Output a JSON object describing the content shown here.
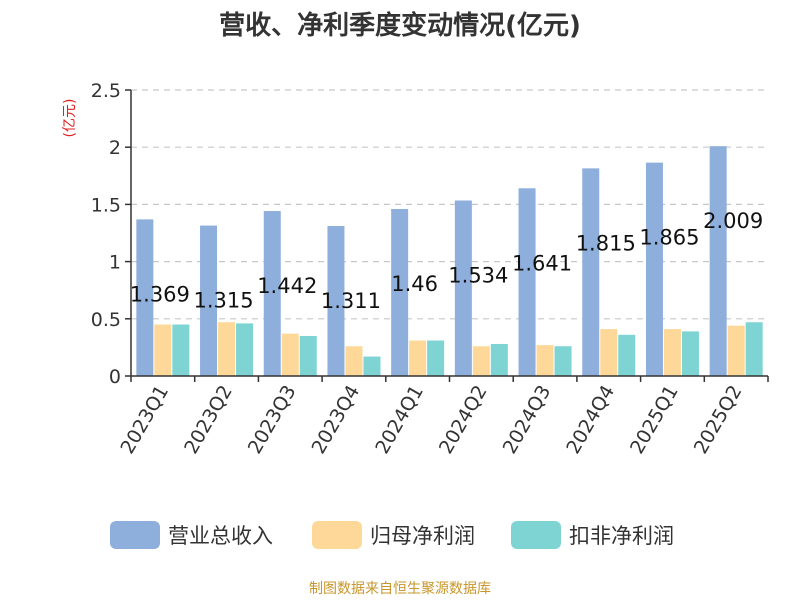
{
  "chart_data": {
    "type": "bar",
    "title": "营收、净利季度变动情况(亿元)",
    "ylabel": "(亿元)",
    "ylim": [
      0,
      2.5
    ],
    "yticks": [
      "0",
      "0.5",
      "1",
      "1.5",
      "2",
      "2.5"
    ],
    "grid": true,
    "legend_position": "bottom",
    "categories": [
      "2023Q1",
      "2023Q2",
      "2023Q3",
      "2023Q4",
      "2024Q1",
      "2024Q2",
      "2024Q3",
      "2024Q4",
      "2025Q1",
      "2025Q2"
    ],
    "series": [
      {
        "name": "营业总收入",
        "color": "#8eaedc",
        "values": [
          1.369,
          1.315,
          1.442,
          1.311,
          1.46,
          1.534,
          1.641,
          1.815,
          1.865,
          2.009
        ]
      },
      {
        "name": "归母净利润",
        "color": "#fdd898",
        "values": [
          0.45,
          0.47,
          0.37,
          0.26,
          0.31,
          0.26,
          0.27,
          0.41,
          0.41,
          0.44
        ]
      },
      {
        "name": "扣非净利润",
        "color": "#7ed3d3",
        "values": [
          0.45,
          0.46,
          0.35,
          0.17,
          0.31,
          0.28,
          0.26,
          0.36,
          0.39,
          0.47
        ]
      }
    ],
    "data_labels": [
      "1.369",
      "1.315",
      "1.442",
      "1.311",
      "1.46",
      "1.534",
      "1.641",
      "1.815",
      "1.865",
      "2.009"
    ],
    "unit_color": "#e02020",
    "source_color": "#c8962a"
  },
  "footer": {
    "source": "制图数据来自恒生聚源数据库"
  }
}
